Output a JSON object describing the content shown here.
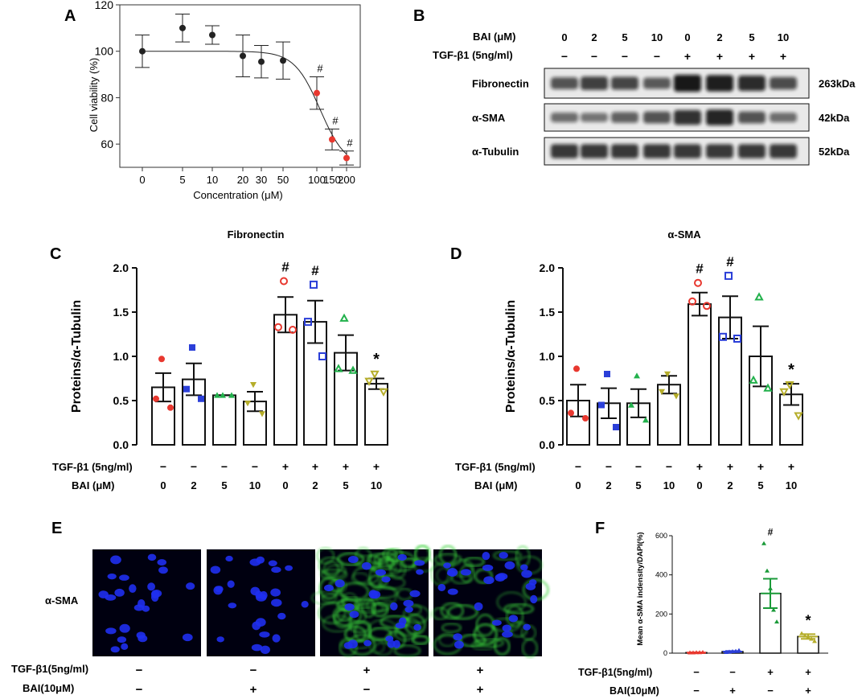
{
  "panel_labels": [
    "A",
    "B",
    "C",
    "D",
    "E",
    "F"
  ],
  "colors": {
    "red": "#e8382f",
    "blue": "#2b3fd8",
    "green": "#22b14c",
    "olive": "#b5ad2a",
    "darkgreen": "#1a9a38"
  },
  "chart_data": [
    {
      "panel": "A",
      "type": "scatter",
      "ylabel": "Cell viability (%)",
      "xlabel": "Concentration (μM)",
      "x_ticks": [
        "0",
        "5",
        "10",
        "20",
        "30",
        "50",
        "100",
        "150",
        "200"
      ],
      "y_ticks": [
        "60",
        "80",
        "100",
        "120"
      ],
      "ylim": [
        50,
        120
      ],
      "points": [
        {
          "x": "0",
          "y": 100,
          "err": 7,
          "color": "#222222"
        },
        {
          "x": "5",
          "y": 110,
          "err": 6,
          "color": "#222222"
        },
        {
          "x": "10",
          "y": 107,
          "err": 4,
          "color": "#222222"
        },
        {
          "x": "20",
          "y": 98,
          "err": 9,
          "color": "#222222"
        },
        {
          "x": "30",
          "y": 95.5,
          "err": 7,
          "color": "#222222"
        },
        {
          "x": "50",
          "y": 96,
          "err": 8,
          "color": "#222222"
        },
        {
          "x": "100",
          "y": 82,
          "err": 7,
          "color": "#e8382f",
          "mark": "#"
        },
        {
          "x": "150",
          "y": 62,
          "err": 4.5,
          "color": "#e8382f",
          "mark": "#"
        },
        {
          "x": "200",
          "y": 54,
          "err": 3,
          "color": "#e8382f",
          "mark": "#"
        }
      ],
      "fit_curve": "sigmoid"
    },
    {
      "panel": "C",
      "type": "bar",
      "title": "Fibronectin",
      "ylabel": "Proteins/α-Tubulin",
      "y_ticks": [
        "0.0",
        "0.5",
        "1.0",
        "1.5",
        "2.0"
      ],
      "ylim": [
        0,
        2.0
      ],
      "bars": [
        {
          "mean": 0.65,
          "sem": 0.16,
          "color": "#e8382f",
          "shape": "circle",
          "fill": true,
          "points": [
            0.97,
            0.52,
            0.42
          ]
        },
        {
          "mean": 0.74,
          "sem": 0.18,
          "color": "#2b3fd8",
          "shape": "square",
          "fill": true,
          "points": [
            1.1,
            0.63,
            0.52
          ]
        },
        {
          "mean": 0.56,
          "sem": 0.0,
          "color": "#22b14c",
          "shape": "triangle",
          "fill": true,
          "points": [
            0.56,
            0.56,
            0.56
          ]
        },
        {
          "mean": 0.49,
          "sem": 0.11,
          "color": "#b5ad2a",
          "shape": "tridown",
          "fill": true,
          "points": [
            0.68,
            0.47,
            0.35
          ]
        },
        {
          "mean": 1.47,
          "sem": 0.2,
          "color": "#e8382f",
          "shape": "circle",
          "fill": false,
          "points": [
            1.85,
            1.33,
            1.3
          ],
          "mark": "#"
        },
        {
          "mean": 1.39,
          "sem": 0.24,
          "color": "#2b3fd8",
          "shape": "square",
          "fill": false,
          "points": [
            1.81,
            1.39,
            1.0
          ],
          "mark": "#"
        },
        {
          "mean": 1.04,
          "sem": 0.2,
          "color": "#22b14c",
          "shape": "triangle",
          "fill": false,
          "points": [
            1.43,
            0.86,
            0.84
          ]
        },
        {
          "mean": 0.69,
          "sem": 0.06,
          "color": "#b5ad2a",
          "shape": "tridown",
          "fill": false,
          "points": [
            0.8,
            0.72,
            0.6
          ],
          "mark": "*"
        }
      ]
    },
    {
      "panel": "D",
      "type": "bar",
      "title": "α-SMA",
      "ylabel": "Proteins/α-Tubulin",
      "y_ticks": [
        "0.0",
        "0.5",
        "1.0",
        "1.5",
        "2.0"
      ],
      "ylim": [
        0,
        2.0
      ],
      "bars": [
        {
          "mean": 0.5,
          "sem": 0.18,
          "color": "#e8382f",
          "shape": "circle",
          "fill": true,
          "points": [
            0.86,
            0.36,
            0.3
          ]
        },
        {
          "mean": 0.47,
          "sem": 0.17,
          "color": "#2b3fd8",
          "shape": "square",
          "fill": true,
          "points": [
            0.8,
            0.45,
            0.2
          ]
        },
        {
          "mean": 0.47,
          "sem": 0.16,
          "color": "#22b14c",
          "shape": "triangle",
          "fill": true,
          "points": [
            0.78,
            0.45,
            0.28
          ]
        },
        {
          "mean": 0.68,
          "sem": 0.1,
          "color": "#b5ad2a",
          "shape": "tridown",
          "fill": true,
          "points": [
            0.8,
            0.6,
            0.55
          ]
        },
        {
          "mean": 1.59,
          "sem": 0.13,
          "color": "#e8382f",
          "shape": "circle",
          "fill": false,
          "points": [
            1.83,
            1.62,
            1.57
          ],
          "mark": "#"
        },
        {
          "mean": 1.44,
          "sem": 0.24,
          "color": "#2b3fd8",
          "shape": "square",
          "fill": false,
          "points": [
            1.91,
            1.22,
            1.2
          ],
          "mark": "#"
        },
        {
          "mean": 1.0,
          "sem": 0.34,
          "color": "#22b14c",
          "shape": "triangle",
          "fill": false,
          "points": [
            1.67,
            0.73,
            0.64
          ]
        },
        {
          "mean": 0.57,
          "sem": 0.12,
          "color": "#b5ad2a",
          "shape": "tridown",
          "fill": false,
          "points": [
            0.68,
            0.6,
            0.33
          ],
          "mark": "*"
        }
      ]
    },
    {
      "panel": "F",
      "type": "bar",
      "ylabel": "Mean α-SMA indensity/DAPI(%)",
      "y_ticks": [
        "0",
        "200",
        "400",
        "600"
      ],
      "ylim": [
        0,
        600
      ],
      "bars": [
        {
          "mean": 3,
          "sem": 1,
          "color": "#e8382f",
          "points": [
            2,
            2,
            3,
            3,
            4
          ]
        },
        {
          "mean": 8,
          "sem": 3,
          "color": "#2b3fd8",
          "points": [
            4,
            6,
            8,
            10,
            14
          ]
        },
        {
          "mean": 305,
          "sem": 75,
          "color": "#1a9a38",
          "points": [
            560,
            420,
            330,
            220,
            160
          ],
          "mark": "#"
        },
        {
          "mean": 85,
          "sem": 12,
          "color": "#b5ad2a",
          "points": [
            100,
            88,
            80,
            72,
            60
          ],
          "mark": "*"
        }
      ]
    }
  ],
  "bar_axis_labels": {
    "tgf": "TGF-β1 (5ng/ml)",
    "bai": "BAI (μM)",
    "tgf_signs": [
      "−",
      "−",
      "−",
      "−",
      "+",
      "+",
      "+",
      "+"
    ],
    "bai_values": [
      "0",
      "2",
      "5",
      "10",
      "0",
      "2",
      "5",
      "10"
    ]
  },
  "blot": {
    "bai_label": "BAI (μM)",
    "tgf_label": "TGF-β1 (5ng/ml)",
    "bai_values": [
      "0",
      "2",
      "5",
      "10",
      "0",
      "2",
      "5",
      "10"
    ],
    "tgf_signs": [
      "−",
      "−",
      "−",
      "−",
      "+",
      "+",
      "+",
      "+"
    ],
    "rows": [
      {
        "name": "Fibronectin",
        "size": "263kDa",
        "intensities": [
          0.55,
          0.7,
          0.65,
          0.5,
          1.0,
          0.95,
          0.85,
          0.6
        ]
      },
      {
        "name": "α-SMA",
        "size": "42kDa",
        "intensities": [
          0.35,
          0.3,
          0.45,
          0.55,
          0.8,
          0.9,
          0.55,
          0.35
        ]
      },
      {
        "name": "α-Tubulin",
        "size": "52kDa",
        "intensities": [
          0.75,
          0.75,
          0.75,
          0.75,
          0.75,
          0.75,
          0.75,
          0.75
        ]
      }
    ]
  },
  "micrographs": {
    "stain_label": "α-SMA",
    "tgf_label": "TGF-β1(5ng/ml)",
    "bai_label": "BAI(10μM)",
    "tgf_signs": [
      "−",
      "−",
      "+",
      "+"
    ],
    "bai_signs": [
      "−",
      "+",
      "−",
      "+"
    ],
    "green_level": [
      0,
      0,
      1,
      0.45
    ]
  },
  "panel_f_labels": {
    "tgf_label": "TGF-β1(5ng/ml)",
    "bai_label": "BAI(10μM)",
    "tgf_signs": [
      "−",
      "−",
      "+",
      "+"
    ],
    "bai_signs": [
      "−",
      "+",
      "−",
      "+"
    ]
  }
}
